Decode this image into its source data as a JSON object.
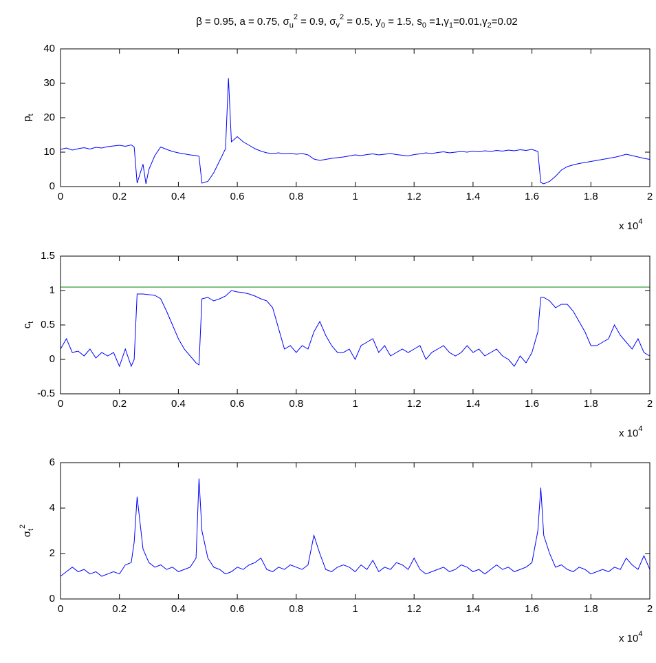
{
  "chart_data": [
    {
      "type": "line",
      "title": "β = 0.95, a = 0.75, σ_u^2 = 0.9, σ_v^2 = 0.5, y_0 = 1.5, s_0 =1,γ_1=0.01,γ_2=0.02",
      "ylabel": "p_t",
      "x_multiplier": "x 10^4",
      "xlim": [
        0,
        2
      ],
      "xticks": [
        0,
        0.2,
        0.4,
        0.6,
        0.8,
        1,
        1.2,
        1.4,
        1.6,
        1.8,
        2
      ],
      "ylim": [
        0,
        40
      ],
      "yticks": [
        0,
        10,
        20,
        30,
        40
      ],
      "series": [
        {
          "color": "#0000ff",
          "x": [
            0,
            0.02,
            0.04,
            0.06,
            0.08,
            0.1,
            0.12,
            0.14,
            0.16,
            0.18,
            0.2,
            0.22,
            0.24,
            0.25,
            0.26,
            0.28,
            0.29,
            0.3,
            0.32,
            0.34,
            0.36,
            0.38,
            0.4,
            0.42,
            0.44,
            0.46,
            0.47,
            0.48,
            0.5,
            0.52,
            0.54,
            0.56,
            0.57,
            0.58,
            0.6,
            0.62,
            0.64,
            0.66,
            0.68,
            0.7,
            0.72,
            0.74,
            0.76,
            0.78,
            0.8,
            0.82,
            0.84,
            0.86,
            0.88,
            0.9,
            0.92,
            0.94,
            0.96,
            0.98,
            1,
            1.02,
            1.04,
            1.06,
            1.08,
            1.1,
            1.12,
            1.14,
            1.16,
            1.18,
            1.2,
            1.22,
            1.24,
            1.26,
            1.28,
            1.3,
            1.32,
            1.34,
            1.36,
            1.38,
            1.4,
            1.42,
            1.44,
            1.46,
            1.48,
            1.5,
            1.52,
            1.54,
            1.56,
            1.58,
            1.6,
            1.62,
            1.63,
            1.64,
            1.66,
            1.68,
            1.7,
            1.72,
            1.74,
            1.76,
            1.78,
            1.8,
            1.82,
            1.84,
            1.86,
            1.88,
            1.9,
            1.92,
            1.94,
            1.96,
            1.98,
            2
          ],
          "values": [
            10.8,
            11.2,
            10.6,
            11.0,
            11.3,
            10.9,
            11.4,
            11.2,
            11.6,
            11.8,
            12.0,
            11.7,
            12.1,
            11.5,
            1.0,
            6.5,
            0.8,
            5.0,
            9.0,
            11.5,
            10.8,
            10.2,
            9.8,
            9.5,
            9.2,
            9.0,
            8.8,
            1.0,
            1.5,
            4.0,
            7.5,
            11.0,
            31.5,
            13.0,
            14.5,
            13.0,
            12.0,
            11.0,
            10.3,
            9.8,
            9.6,
            9.8,
            9.5,
            9.7,
            9.4,
            9.6,
            9.2,
            8.0,
            7.6,
            7.9,
            8.2,
            8.4,
            8.6,
            8.9,
            9.2,
            9.0,
            9.3,
            9.5,
            9.2,
            9.4,
            9.6,
            9.3,
            9.1,
            8.9,
            9.3,
            9.5,
            9.8,
            9.6,
            9.9,
            10.1,
            9.8,
            10.0,
            10.2,
            10.0,
            10.3,
            10.1,
            10.4,
            10.2,
            10.5,
            10.3,
            10.6,
            10.4,
            10.7,
            10.5,
            10.8,
            10.2,
            1.2,
            0.8,
            1.5,
            3.0,
            4.8,
            5.8,
            6.3,
            6.7,
            7.0,
            7.3,
            7.6,
            7.9,
            8.2,
            8.5,
            8.9,
            9.4,
            9.0,
            8.6,
            8.2,
            7.9
          ]
        }
      ]
    },
    {
      "type": "line",
      "ylabel": "c_t",
      "x_multiplier": "x 10^4",
      "xlim": [
        0,
        2
      ],
      "xticks": [
        0,
        0.2,
        0.4,
        0.6,
        0.8,
        1,
        1.2,
        1.4,
        1.6,
        1.8,
        2
      ],
      "ylim": [
        -0.5,
        1.5
      ],
      "yticks": [
        -0.5,
        0,
        0.5,
        1,
        1.5
      ],
      "series": [
        {
          "color": "#0000ff",
          "x": [
            0,
            0.02,
            0.04,
            0.06,
            0.08,
            0.1,
            0.12,
            0.14,
            0.16,
            0.18,
            0.2,
            0.22,
            0.24,
            0.25,
            0.26,
            0.28,
            0.3,
            0.32,
            0.34,
            0.36,
            0.38,
            0.4,
            0.42,
            0.44,
            0.46,
            0.47,
            0.48,
            0.5,
            0.52,
            0.54,
            0.56,
            0.58,
            0.6,
            0.62,
            0.64,
            0.66,
            0.68,
            0.7,
            0.72,
            0.74,
            0.76,
            0.78,
            0.8,
            0.82,
            0.84,
            0.86,
            0.88,
            0.9,
            0.92,
            0.94,
            0.96,
            0.98,
            1,
            1.02,
            1.04,
            1.06,
            1.08,
            1.1,
            1.12,
            1.14,
            1.16,
            1.18,
            1.2,
            1.22,
            1.24,
            1.26,
            1.28,
            1.3,
            1.32,
            1.34,
            1.36,
            1.38,
            1.4,
            1.42,
            1.44,
            1.46,
            1.48,
            1.5,
            1.52,
            1.54,
            1.56,
            1.58,
            1.6,
            1.62,
            1.63,
            1.64,
            1.66,
            1.68,
            1.7,
            1.72,
            1.74,
            1.76,
            1.78,
            1.8,
            1.82,
            1.84,
            1.86,
            1.88,
            1.9,
            1.92,
            1.94,
            1.96,
            1.98,
            2
          ],
          "values": [
            0.15,
            0.3,
            0.1,
            0.12,
            0.05,
            0.15,
            0.02,
            0.1,
            0.05,
            0.1,
            -0.1,
            0.15,
            -0.1,
            0.0,
            0.95,
            0.95,
            0.94,
            0.93,
            0.88,
            0.7,
            0.5,
            0.3,
            0.15,
            0.05,
            -0.05,
            -0.08,
            0.88,
            0.9,
            0.85,
            0.88,
            0.92,
            1.0,
            0.98,
            0.97,
            0.95,
            0.92,
            0.88,
            0.85,
            0.75,
            0.45,
            0.15,
            0.2,
            0.1,
            0.2,
            0.15,
            0.4,
            0.55,
            0.35,
            0.2,
            0.1,
            0.1,
            0.15,
            0.0,
            0.2,
            0.25,
            0.3,
            0.1,
            0.2,
            0.05,
            0.1,
            0.15,
            0.1,
            0.15,
            0.2,
            0.0,
            0.1,
            0.15,
            0.2,
            0.1,
            0.05,
            0.1,
            0.2,
            0.1,
            0.15,
            0.05,
            0.1,
            0.15,
            0.05,
            0.0,
            -0.1,
            0.05,
            -0.05,
            0.1,
            0.4,
            0.9,
            0.9,
            0.85,
            0.75,
            0.8,
            0.8,
            0.7,
            0.55,
            0.4,
            0.2,
            0.2,
            0.25,
            0.3,
            0.5,
            0.35,
            0.25,
            0.15,
            0.3,
            0.1,
            0.05
          ]
        },
        {
          "color": "#008000",
          "x": [
            0,
            2
          ],
          "values": [
            1.05,
            1.05
          ]
        }
      ]
    },
    {
      "type": "line",
      "ylabel": "σ_t^2",
      "x_multiplier": "x 10^4",
      "xlim": [
        0,
        2
      ],
      "xticks": [
        0,
        0.2,
        0.4,
        0.6,
        0.8,
        1,
        1.2,
        1.4,
        1.6,
        1.8,
        2
      ],
      "ylim": [
        0,
        6
      ],
      "yticks": [
        0,
        2,
        4,
        6
      ],
      "series": [
        {
          "color": "#0000ff",
          "x": [
            0,
            0.02,
            0.04,
            0.06,
            0.08,
            0.1,
            0.12,
            0.14,
            0.16,
            0.18,
            0.2,
            0.22,
            0.24,
            0.25,
            0.26,
            0.28,
            0.3,
            0.32,
            0.34,
            0.36,
            0.38,
            0.4,
            0.42,
            0.44,
            0.46,
            0.47,
            0.48,
            0.5,
            0.52,
            0.54,
            0.56,
            0.58,
            0.6,
            0.62,
            0.64,
            0.66,
            0.68,
            0.7,
            0.72,
            0.74,
            0.76,
            0.78,
            0.8,
            0.82,
            0.84,
            0.86,
            0.88,
            0.9,
            0.92,
            0.94,
            0.96,
            0.98,
            1,
            1.02,
            1.04,
            1.06,
            1.08,
            1.1,
            1.12,
            1.14,
            1.16,
            1.18,
            1.2,
            1.22,
            1.24,
            1.26,
            1.28,
            1.3,
            1.32,
            1.34,
            1.36,
            1.38,
            1.4,
            1.42,
            1.44,
            1.46,
            1.48,
            1.5,
            1.52,
            1.54,
            1.56,
            1.58,
            1.6,
            1.62,
            1.63,
            1.64,
            1.66,
            1.68,
            1.7,
            1.72,
            1.74,
            1.76,
            1.78,
            1.8,
            1.82,
            1.84,
            1.86,
            1.88,
            1.9,
            1.92,
            1.94,
            1.96,
            1.98,
            2
          ],
          "values": [
            1.0,
            1.2,
            1.4,
            1.2,
            1.3,
            1.1,
            1.2,
            1.0,
            1.1,
            1.2,
            1.1,
            1.5,
            1.6,
            2.5,
            4.5,
            2.2,
            1.6,
            1.4,
            1.5,
            1.3,
            1.4,
            1.2,
            1.3,
            1.4,
            1.8,
            5.3,
            3.0,
            1.8,
            1.4,
            1.3,
            1.1,
            1.2,
            1.4,
            1.3,
            1.5,
            1.6,
            1.8,
            1.3,
            1.2,
            1.4,
            1.3,
            1.5,
            1.4,
            1.3,
            1.5,
            2.8,
            2.0,
            1.3,
            1.2,
            1.4,
            1.5,
            1.4,
            1.2,
            1.5,
            1.3,
            1.7,
            1.2,
            1.4,
            1.3,
            1.6,
            1.5,
            1.3,
            1.8,
            1.3,
            1.1,
            1.2,
            1.3,
            1.4,
            1.2,
            1.3,
            1.5,
            1.4,
            1.2,
            1.3,
            1.1,
            1.3,
            1.5,
            1.3,
            1.4,
            1.2,
            1.3,
            1.4,
            1.6,
            3.0,
            4.9,
            2.8,
            2.0,
            1.4,
            1.5,
            1.3,
            1.2,
            1.4,
            1.3,
            1.1,
            1.2,
            1.3,
            1.2,
            1.4,
            1.3,
            1.8,
            1.5,
            1.3,
            1.9,
            1.3
          ]
        }
      ]
    }
  ]
}
